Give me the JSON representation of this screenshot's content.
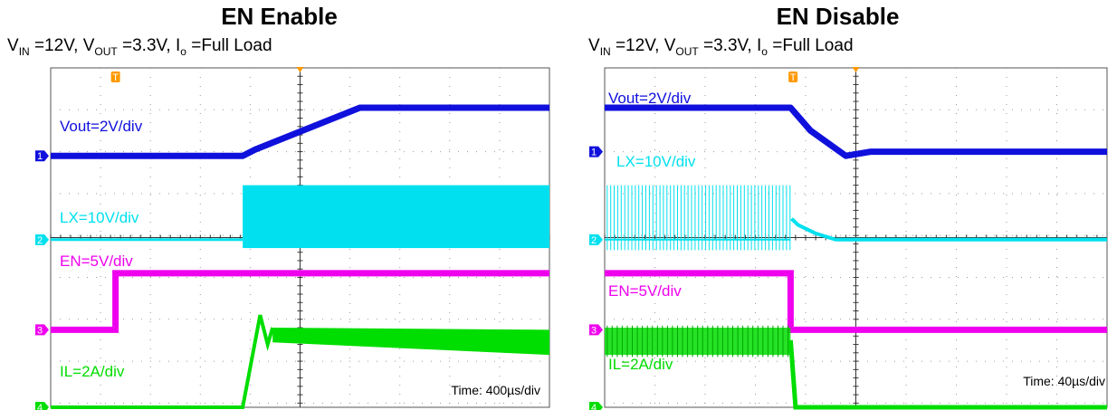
{
  "panels": [
    {
      "id": "enable",
      "title": "EN Enable",
      "cond": {
        "vin_sym": "V",
        "vin_sub": "IN",
        "vin_val": " =12V, ",
        "vout_sym": "V",
        "vout_sub": "OUT",
        "vout_val": " =3.3V, ",
        "io_sym": "I",
        "io_sub": "o",
        "io_val": " =Full Load"
      },
      "labels": {
        "vout": "Vout=2V/div",
        "lx": "LX=10V/div",
        "en": "EN=5V/div",
        "il": "IL=2A/div"
      },
      "time": "Time: 400µs/div",
      "trigger_marker": "T"
    },
    {
      "id": "disable",
      "title": "EN Disable",
      "cond": {
        "vin_sym": "V",
        "vin_sub": "IN",
        "vin_val": " =12V, ",
        "vout_sym": "V",
        "vout_sub": "OUT",
        "vout_val": " =3.3V, ",
        "io_sym": "I",
        "io_sub": "o",
        "io_val": " =Full Load"
      },
      "labels": {
        "vout": "Vout=2V/div",
        "lx": "LX=10V/div",
        "en": "EN=5V/div",
        "il": "IL=2A/div"
      },
      "time": "Time: 40µs/div",
      "trigger_marker": "T"
    }
  ],
  "channel_markers": [
    "1",
    "2",
    "3",
    "4"
  ],
  "colors": {
    "vout": "#1010dd",
    "lx": "#00e0ee",
    "en": "#ee00ee",
    "il": "#00dd00",
    "grid": "#9a9a9a",
    "trigger": "#ff9900"
  },
  "chart_data": [
    {
      "type": "line",
      "title": "EN Enable",
      "xlabel": "",
      "ylabel": "",
      "grid": true,
      "x_unit": "div (400µs/div)",
      "x_range": [
        0,
        10
      ],
      "y_unit": "div",
      "y_range": [
        0,
        8
      ],
      "series": [
        {
          "name": "Vout=2V/div",
          "points": [
            [
              0,
              6.0
            ],
            [
              3.85,
              6.0
            ],
            [
              4.1,
              6.15
            ],
            [
              6.2,
              7.15
            ],
            [
              10,
              7.15
            ]
          ]
        },
        {
          "name": "LX=10V/div",
          "points": [
            [
              0,
              4.0
            ],
            [
              3.85,
              4.0
            ],
            [
              3.85,
              5.3
            ],
            [
              10,
              5.3
            ],
            [
              10,
              3.8
            ],
            [
              3.85,
              3.8
            ]
          ]
        },
        {
          "name": "EN=5V/div",
          "points": [
            [
              0,
              1.85
            ],
            [
              1.3,
              1.85
            ],
            [
              1.3,
              3.2
            ],
            [
              10,
              3.2
            ]
          ]
        },
        {
          "name": "IL=2A/div",
          "points": [
            [
              0,
              0.0
            ],
            [
              3.85,
              0.0
            ],
            [
              4.2,
              2.2
            ],
            [
              4.5,
              1.8
            ],
            [
              10,
              1.5
            ]
          ]
        }
      ]
    },
    {
      "type": "line",
      "title": "EN Disable",
      "xlabel": "",
      "ylabel": "",
      "grid": true,
      "x_unit": "div (40µs/div)",
      "x_range": [
        0,
        10
      ],
      "y_unit": "div",
      "y_range": [
        0,
        8
      ],
      "series": [
        {
          "name": "Vout=2V/div",
          "points": [
            [
              0,
              7.15
            ],
            [
              3.7,
              7.15
            ],
            [
              4.1,
              6.6
            ],
            [
              4.8,
              6.0
            ],
            [
              5.3,
              6.1
            ],
            [
              10,
              6.1
            ]
          ]
        },
        {
          "name": "LX=10V/div",
          "points": [
            [
              0,
              4.0
            ],
            [
              3.7,
              4.0
            ],
            [
              3.7,
              5.3
            ],
            [
              0,
              5.3
            ],
            [
              3.75,
              4.3
            ],
            [
              4.6,
              4.0
            ],
            [
              10,
              4.0
            ]
          ]
        },
        {
          "name": "EN=5V/div",
          "points": [
            [
              0,
              3.2
            ],
            [
              3.7,
              3.2
            ],
            [
              3.7,
              1.85
            ],
            [
              10,
              1.85
            ]
          ]
        },
        {
          "name": "IL=2A/div",
          "points": [
            [
              0,
              1.6
            ],
            [
              3.7,
              1.6
            ],
            [
              3.8,
              0.0
            ],
            [
              10,
              0.0
            ]
          ]
        }
      ]
    }
  ]
}
